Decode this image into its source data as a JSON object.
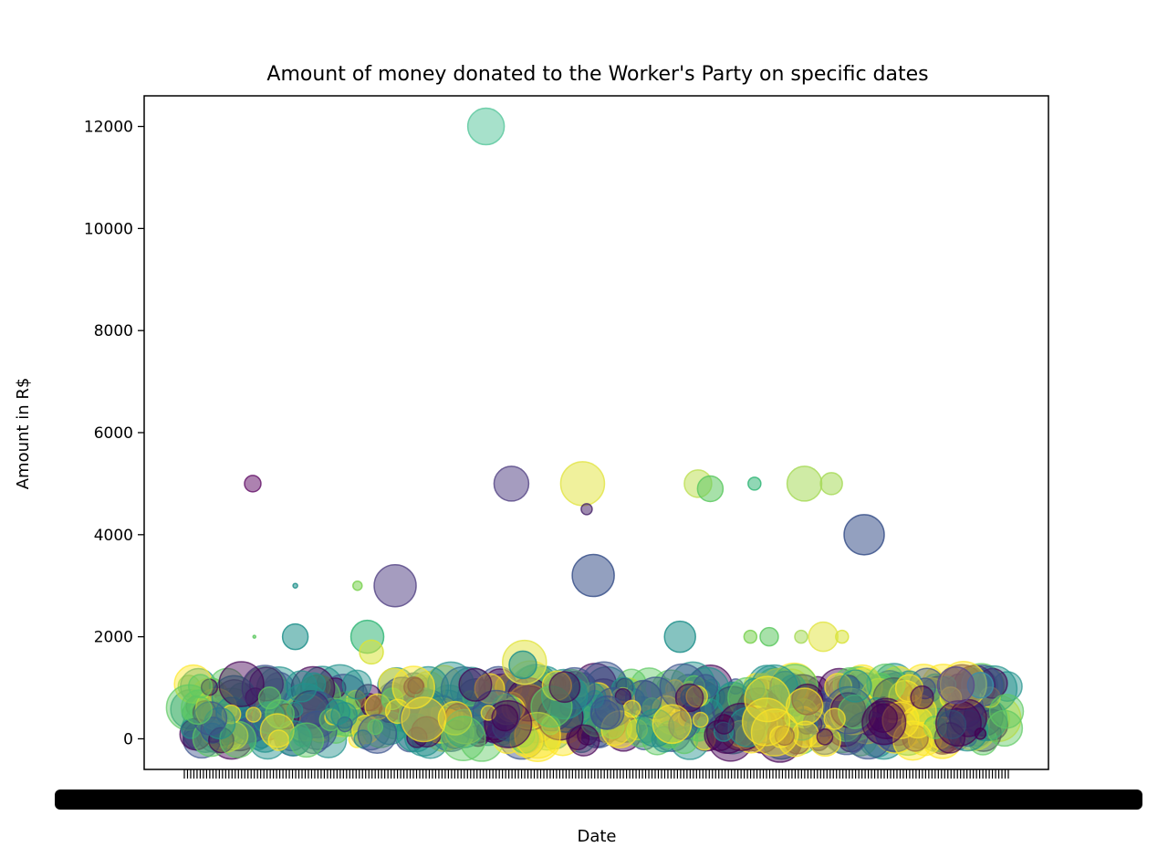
{
  "chart_data": {
    "type": "scatter",
    "title": "Amount of money donated to the Worker's Party on specific dates",
    "xlabel": "Date",
    "ylabel": "Amount in R$",
    "ylim": [
      -600,
      12600
    ],
    "xlim": [
      0,
      100
    ],
    "y_ticks": [
      0,
      2000,
      4000,
      6000,
      8000,
      10000,
      12000
    ],
    "y_tick_labels": [
      "0",
      "2000",
      "4000",
      "6000",
      "8000",
      "10000",
      "12000"
    ],
    "x_tick_labels_note": "overlapping date labels rendered as an illegible black band",
    "grid": false,
    "legend": "none",
    "colormap": [
      "#440154",
      "#3b528b",
      "#21918c",
      "#5ec962",
      "#fde725"
    ],
    "points": [
      {
        "x": 36.3,
        "y": 12000,
        "size": 40,
        "color": "#5ec9a0"
      },
      {
        "x": 7.8,
        "y": 5000,
        "size": 18,
        "color": "#6a1b6f"
      },
      {
        "x": 39.4,
        "y": 5000,
        "size": 38,
        "color": "#5b4b8a"
      },
      {
        "x": 48.1,
        "y": 5000,
        "size": 48,
        "color": "#e3e54a"
      },
      {
        "x": 48.6,
        "y": 4500,
        "size": 12,
        "color": "#4e2a6e"
      },
      {
        "x": 62.2,
        "y": 5000,
        "size": 30,
        "color": "#bfe05a"
      },
      {
        "x": 63.7,
        "y": 4900,
        "size": 28,
        "color": "#5ec962"
      },
      {
        "x": 69.1,
        "y": 5000,
        "size": 14,
        "color": "#35b779"
      },
      {
        "x": 75.2,
        "y": 5000,
        "size": 38,
        "color": "#a8db5b"
      },
      {
        "x": 78.5,
        "y": 5000,
        "size": 24,
        "color": "#a8db5b"
      },
      {
        "x": 82.5,
        "y": 4000,
        "size": 44,
        "color": "#3b528b"
      },
      {
        "x": 8.0,
        "y": 2000,
        "size": 3,
        "color": "#5ec962"
      },
      {
        "x": 13.0,
        "y": 3000,
        "size": 5,
        "color": "#21918c"
      },
      {
        "x": 20.6,
        "y": 3000,
        "size": 10,
        "color": "#7ad151"
      },
      {
        "x": 25.2,
        "y": 3000,
        "size": 46,
        "color": "#5b4b8a"
      },
      {
        "x": 13.0,
        "y": 2000,
        "size": 28,
        "color": "#21918c"
      },
      {
        "x": 21.8,
        "y": 2000,
        "size": 36,
        "color": "#35b779"
      },
      {
        "x": 22.3,
        "y": 1700,
        "size": 26,
        "color": "#d8e33a"
      },
      {
        "x": 49.4,
        "y": 3200,
        "size": 46,
        "color": "#3b528b"
      },
      {
        "x": 60.0,
        "y": 2000,
        "size": 34,
        "color": "#21918c"
      },
      {
        "x": 68.6,
        "y": 2000,
        "size": 14,
        "color": "#7ad151"
      },
      {
        "x": 70.9,
        "y": 2000,
        "size": 20,
        "color": "#5ec962"
      },
      {
        "x": 74.8,
        "y": 2000,
        "size": 14,
        "color": "#a8db5b"
      },
      {
        "x": 77.5,
        "y": 2000,
        "size": 32,
        "color": "#e3e54a"
      },
      {
        "x": 79.8,
        "y": 2000,
        "size": 14,
        "color": "#d8e33a"
      },
      {
        "x": 41.0,
        "y": 1500,
        "size": 48,
        "color": "#e3e54a"
      },
      {
        "x": 40.8,
        "y": 1450,
        "size": 30,
        "color": "#21918c"
      },
      {
        "x": 96.7,
        "y": 1050,
        "size": 28,
        "color": "#3b8fa8"
      },
      {
        "x": 93.7,
        "y": 1050,
        "size": 40,
        "color": "#5b4b8a"
      },
      {
        "x": 96.7,
        "y": 100,
        "size": 12,
        "color": "#440154"
      }
    ]
  }
}
